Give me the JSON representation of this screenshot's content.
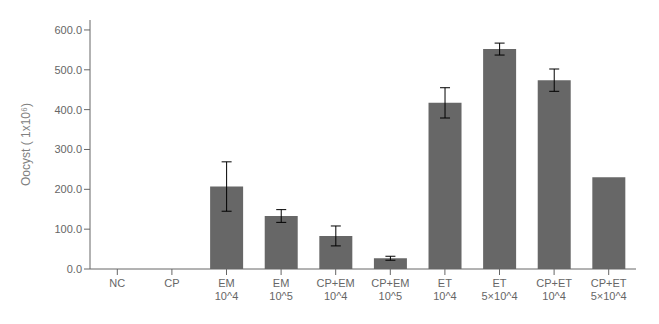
{
  "chart_data": {
    "type": "bar",
    "categories": [
      "NC",
      "CP",
      "EM\n10^4",
      "EM\n10^5",
      "CP+EM\n10^4",
      "CP+EM\n10^5",
      "ET\n10^4",
      "ET\n5×10^4",
      "CP+ET\n10^4",
      "CP+ET\n5×10^4"
    ],
    "values": [
      0.0,
      0.0,
      207.0,
      133.0,
      83.0,
      27.0,
      417.0,
      552.0,
      474.0,
      230.0
    ],
    "errors": [
      0.0,
      0.0,
      62.0,
      16.0,
      25.0,
      5.0,
      38.0,
      15.0,
      28.0,
      0.0
    ],
    "color": "#676767",
    "ylabel": "Oocyst ( 1x10⁶)",
    "ylim": [
      0,
      625
    ],
    "yticks": [
      {
        "value": 0,
        "label": "0.0"
      },
      {
        "value": 100,
        "label": "100.0"
      },
      {
        "value": 200,
        "label": "200.0"
      },
      {
        "value": 300,
        "label": "300.0"
      },
      {
        "value": 400,
        "label": "400.0"
      },
      {
        "value": 500,
        "label": "500.0"
      },
      {
        "value": 600,
        "label": "600.0"
      }
    ],
    "grid": false
  }
}
